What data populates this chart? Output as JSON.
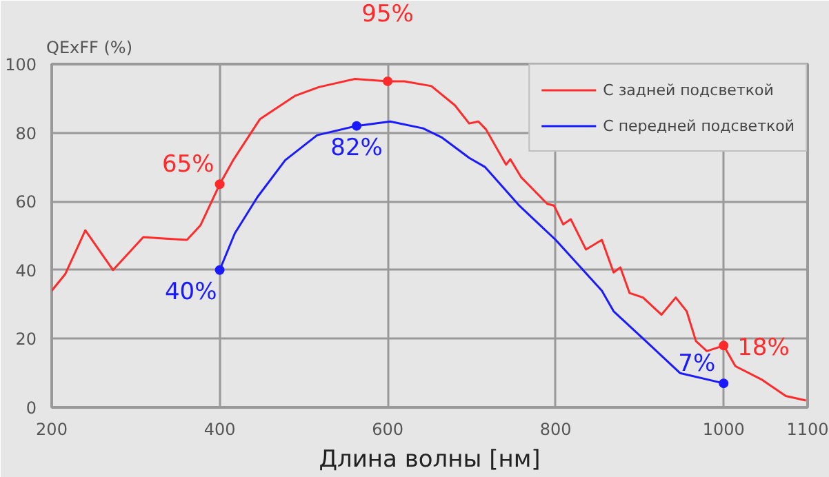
{
  "chart_data": {
    "type": "line",
    "ylabel": "QExFF (%)",
    "xlabel": "Длина волны [нм]",
    "xlim": [
      200,
      1100
    ],
    "xticks": [
      200,
      400,
      600,
      800,
      1000,
      1100
    ],
    "ylim": [
      0,
      100
    ],
    "yticks": [
      0,
      20,
      40,
      60,
      80,
      100
    ],
    "grid": true,
    "legend": "top right",
    "marker": "none",
    "line_style": "solid",
    "series": [
      {
        "name": "С задней подсветкой",
        "color": "#ff2a2a",
        "x": [
          200,
          216,
          240,
          273,
          309,
          333,
          347,
          361,
          377,
          400,
          416,
          448,
          490,
          518,
          561,
          600,
          620,
          652,
          680,
          697,
          708,
          717,
          741,
          746,
          759,
          790,
          798,
          809,
          818,
          836,
          855,
          869,
          877,
          888,
          904,
          926,
          943,
          956,
          967,
          980,
          1000,
          1014,
          1046,
          1074,
          1098
        ],
        "values": [
          34,
          38.8,
          51.6,
          40,
          49.6,
          49.2,
          49,
          48.8,
          53,
          65,
          72,
          84,
          90.8,
          93.3,
          95.7,
          95,
          95,
          93.6,
          88,
          82.7,
          83.3,
          81,
          70.7,
          72.3,
          67,
          59.3,
          58.8,
          53.3,
          54.8,
          46,
          48.8,
          39.3,
          40.8,
          33.3,
          32,
          27,
          32,
          28,
          19.3,
          16.4,
          18,
          12,
          8,
          3.3,
          2
        ]
      },
      {
        "name": "С передней подсветкой",
        "color": "#1a1aff",
        "x": [
          400,
          418,
          445,
          478,
          516,
          563,
          603,
          642,
          664,
          697,
          716,
          757,
          800,
          855,
          869,
          910,
          948,
          1000
        ],
        "values": [
          40,
          50.7,
          61.3,
          72,
          79.3,
          82,
          83.3,
          81.3,
          78.7,
          72.7,
          70,
          58.7,
          48.8,
          34,
          28,
          18.7,
          10,
          7
        ]
      }
    ],
    "annotations": [
      {
        "text": "65%",
        "x": 400,
        "y": 65
      },
      {
        "text": "95%",
        "x": 600,
        "y": 95
      },
      {
        "text": "18%",
        "x": 1000,
        "y": 18
      },
      {
        "text": "40%",
        "x": 400,
        "y": 40
      },
      {
        "text": "82%",
        "x": 563,
        "y": 82
      },
      {
        "text": "7%",
        "x": 1000,
        "y": 7
      }
    ]
  }
}
